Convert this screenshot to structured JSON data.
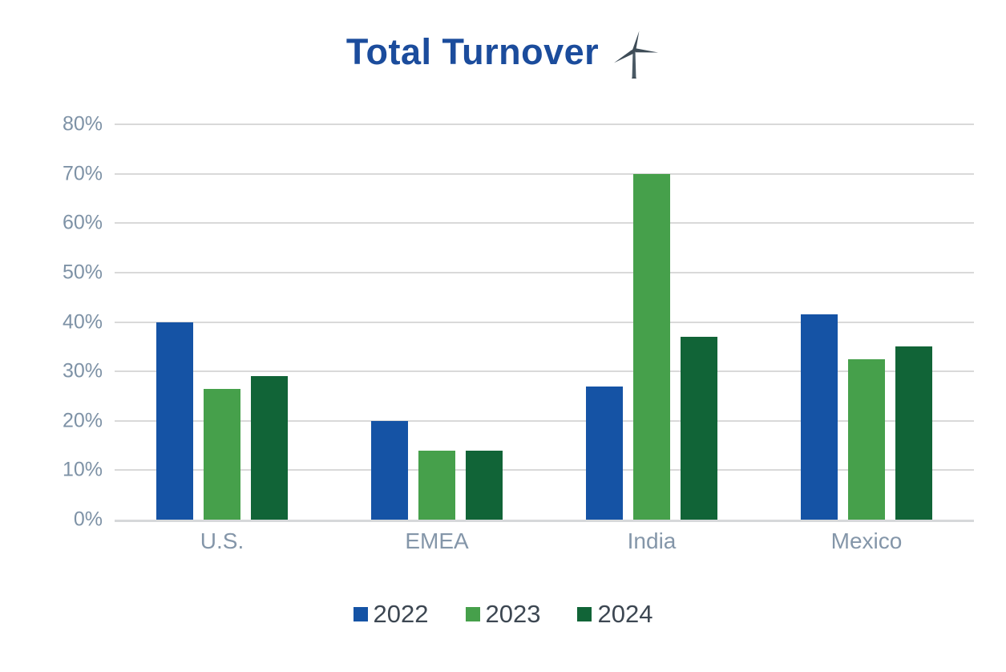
{
  "page": {
    "background": "#ffffff"
  },
  "header": {
    "icon": "wind-turbine-icon",
    "icon_color": "#3e4c57",
    "title_color": "#1b4c9c"
  },
  "chart_data": {
    "type": "bar",
    "title": "Total Turnover",
    "categories": [
      "U.S.",
      "EMEA",
      "India",
      "Mexico"
    ],
    "series": [
      {
        "name": "2022",
        "color": "#1553a5",
        "values": [
          40,
          20,
          27,
          41.5
        ]
      },
      {
        "name": "2023",
        "color": "#46a04b",
        "values": [
          26.5,
          14,
          70,
          32.5
        ]
      },
      {
        "name": "2024",
        "color": "#116437",
        "values": [
          29,
          14,
          37,
          35
        ]
      }
    ],
    "ylim": [
      0,
      80
    ],
    "yticks": [
      {
        "value": 0,
        "label": "0%"
      },
      {
        "value": 10,
        "label": "10%"
      },
      {
        "value": 20,
        "label": "20%"
      },
      {
        "value": 30,
        "label": "30%"
      },
      {
        "value": 40,
        "label": "40%"
      },
      {
        "value": 50,
        "label": "50%"
      },
      {
        "value": 60,
        "label": "60%"
      },
      {
        "value": 70,
        "label": "70%"
      },
      {
        "value": 80,
        "label": "80%"
      }
    ],
    "grid": true,
    "legend_position": "bottom",
    "unit": "percent",
    "colors": {
      "gridline": "#d9d9d9",
      "baseline": "#d6d8da",
      "y_tick_text": "#7e92a6",
      "x_tick_text": "#8496a9",
      "legend_text": "#3d4752"
    }
  }
}
